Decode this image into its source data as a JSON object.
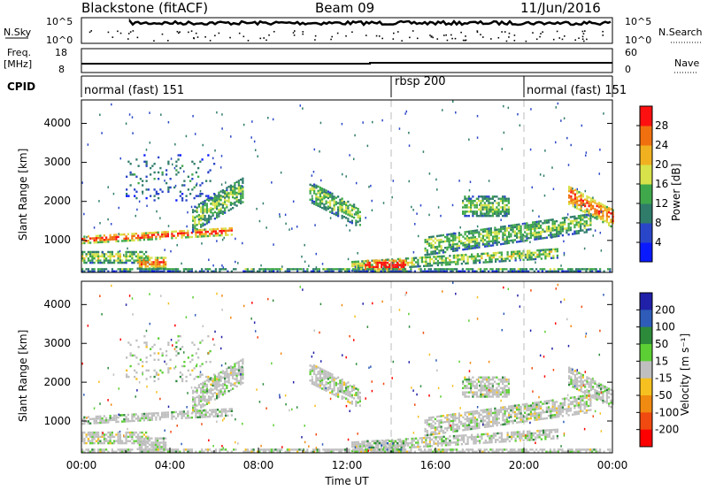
{
  "header": {
    "station": "Blackstone (fitACF)",
    "beam": "Beam 09",
    "date": "11/Jun/2016"
  },
  "top_panels": {
    "nsky": {
      "left_label": "N.Sky",
      "right_label": "N.Search",
      "left_ticks": [
        "10^5",
        "10^0"
      ],
      "right_ticks": [
        "10^5",
        "10^0"
      ]
    },
    "freq": {
      "left_label_1": "Freq.",
      "left_label_2": "[MHz]",
      "left_ticks": [
        "18",
        "8"
      ],
      "right_ticks": [
        "60",
        "0"
      ],
      "right_label": "Nave"
    },
    "cpid": {
      "label": "CPID",
      "modes": [
        {
          "name": "normal (fast) 151",
          "start_hour": 0
        },
        {
          "name": "rbsp 200",
          "start_hour": 14
        },
        {
          "name": "normal (fast) 151",
          "start_hour": 20
        }
      ]
    }
  },
  "chart_data": [
    {
      "type": "heatmap",
      "title": "Power",
      "ylabel": "Slant Range [km]",
      "xlabel": "",
      "x_range_hours": [
        0,
        24
      ],
      "ylim": [
        180,
        4600
      ],
      "y_ticks": [
        "1000",
        "2000",
        "3000",
        "4000"
      ],
      "colorbar_label": "Power [dB]",
      "colorbar_ticks": [
        "4",
        "8",
        "12",
        "16",
        "20",
        "24",
        "28"
      ],
      "colorbar_colors": [
        "#0a1aff",
        "#2a46c8",
        "#2f7c6a",
        "#3fa84a",
        "#d8e24a",
        "#f0b020",
        "#f07010",
        "#ff1010"
      ]
    },
    {
      "type": "heatmap",
      "title": "Velocity",
      "ylabel": "Slant Range [km]",
      "xlabel": "Time UT",
      "x_range_hours": [
        0,
        24
      ],
      "ylim": [
        180,
        4600
      ],
      "y_ticks": [
        "1000",
        "2000",
        "3000",
        "4000"
      ],
      "x_ticks": [
        "00:00",
        "04:00",
        "08:00",
        "12:00",
        "16:00",
        "20:00",
        "00:00"
      ],
      "colorbar_label": "Velocity [m s⁻¹]",
      "colorbar_ticks": [
        "200",
        "100",
        "50",
        "15",
        "-15",
        "-50",
        "-100",
        "-200"
      ],
      "colorbar_colors": [
        "#2020a8",
        "#2e5cb8",
        "#2c8a3a",
        "#5ccf34",
        "#bfbfbf",
        "#f5c020",
        "#f08a10",
        "#f04a10",
        "#ff0000"
      ],
      "ground_scatter_color": "#bfbfbf"
    }
  ],
  "scatter_regions": [
    {
      "t0": 0.0,
      "t1": 6.8,
      "r0": 900,
      "r1": 1300,
      "shape": "band_up",
      "p_level": 0.9,
      "v_level": 0.4
    },
    {
      "t0": 0.0,
      "t1": 3.0,
      "r0": 400,
      "r1": 700,
      "shape": "flat",
      "p_level": 0.55,
      "v_level": 0.45
    },
    {
      "t0": 2.5,
      "t1": 3.8,
      "r0": 250,
      "r1": 550,
      "shape": "flat",
      "p_level": 0.8,
      "v_level": 0.45
    },
    {
      "t0": 5.0,
      "t1": 7.3,
      "r0": 1200,
      "r1": 2600,
      "shape": "band_up",
      "p_level": 0.5,
      "v_level": 0.45
    },
    {
      "t0": 2.0,
      "t1": 6.0,
      "r0": 2000,
      "r1": 3200,
      "shape": "sparse",
      "p_level": 0.3,
      "v_level": 0.45
    },
    {
      "t0": 10.3,
      "t1": 12.6,
      "r0": 1300,
      "r1": 2500,
      "shape": "band_down",
      "p_level": 0.5,
      "v_level": 0.45
    },
    {
      "t0": 12.2,
      "t1": 21.5,
      "r0": 200,
      "r1": 800,
      "shape": "band_up",
      "p_level": 0.55,
      "v_level": 0.45
    },
    {
      "t0": 12.8,
      "t1": 14.6,
      "r0": 180,
      "r1": 500,
      "shape": "flat",
      "p_level": 1.0,
      "v_level": 0.3
    },
    {
      "t0": 15.5,
      "t1": 23.0,
      "r0": 600,
      "r1": 1700,
      "shape": "band_up",
      "p_level": 0.5,
      "v_level": 0.45
    },
    {
      "t0": 17.2,
      "t1": 19.3,
      "r0": 1600,
      "r1": 2100,
      "shape": "flat",
      "p_level": 0.5,
      "v_level": 0.45
    },
    {
      "t0": 22.0,
      "t1": 24.0,
      "r0": 1300,
      "r1": 2400,
      "shape": "band_down",
      "p_level": 0.85,
      "v_level": 0.45
    },
    {
      "t0": 0.0,
      "t1": 24.0,
      "r0": 180,
      "r1": 280,
      "shape": "flat",
      "p_level": 0.4,
      "v_level": 0.45
    }
  ]
}
